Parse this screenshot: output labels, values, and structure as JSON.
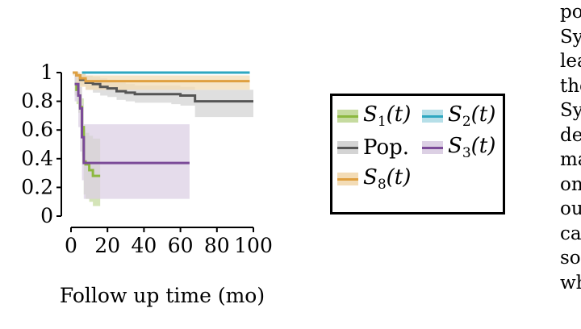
{
  "chart_data": {
    "type": "line",
    "xlabel": "Follow up time (mo)",
    "ylabel": "",
    "xlim": [
      0,
      100
    ],
    "ylim": [
      0,
      1
    ],
    "xticks": [
      "0",
      "20",
      "40",
      "60",
      "80",
      "100"
    ],
    "yticks": [
      "0",
      "0.2",
      "0.4",
      "0.6",
      "0.8",
      "1"
    ],
    "grid": false,
    "legend_position": "right-outside",
    "series": [
      {
        "name": "S1(t)",
        "legend_text": "S",
        "legend_sub": "1",
        "legend_suffix": "(t)",
        "color": "#8cb83f",
        "band_color": "#c6dba0",
        "x": [
          2,
          3,
          4,
          5,
          6,
          7,
          8,
          10,
          12,
          16
        ],
        "y": [
          0.92,
          0.88,
          0.84,
          0.76,
          0.62,
          0.38,
          0.36,
          0.32,
          0.28,
          0.28
        ],
        "lower": [
          0.84,
          0.78,
          0.72,
          0.62,
          0.42,
          0.15,
          0.12,
          0.1,
          0.07,
          0.07
        ],
        "upper": [
          0.98,
          0.96,
          0.94,
          0.9,
          0.82,
          0.6,
          0.58,
          0.56,
          0.54,
          0.54
        ]
      },
      {
        "name": "S2(t)",
        "legend_text": "S",
        "legend_sub": "2",
        "legend_suffix": "(t)",
        "color": "#2ea7c0",
        "band_color": "#b6dfe8",
        "x": [
          6,
          98
        ],
        "y": [
          1.0,
          1.0
        ],
        "lower": [
          1.0,
          1.0
        ],
        "upper": [
          1.0,
          1.0
        ]
      },
      {
        "name": "Pop.",
        "legend_text": "Pop.",
        "legend_sub": "",
        "legend_suffix": "",
        "color": "#555555",
        "band_color": "#d4d4d4",
        "x": [
          1,
          3,
          5,
          8,
          12,
          16,
          20,
          25,
          30,
          35,
          45,
          55,
          60,
          68,
          80,
          100
        ],
        "y": [
          1.0,
          0.98,
          0.95,
          0.93,
          0.92,
          0.9,
          0.89,
          0.87,
          0.86,
          0.85,
          0.85,
          0.85,
          0.84,
          0.8,
          0.8,
          0.8
        ],
        "lower": [
          0.99,
          0.95,
          0.91,
          0.88,
          0.86,
          0.84,
          0.83,
          0.81,
          0.8,
          0.79,
          0.79,
          0.78,
          0.77,
          0.69,
          0.69,
          0.69
        ],
        "upper": [
          1.0,
          1.0,
          0.99,
          0.98,
          0.97,
          0.96,
          0.95,
          0.93,
          0.92,
          0.91,
          0.91,
          0.91,
          0.9,
          0.88,
          0.88,
          0.88
        ]
      },
      {
        "name": "S3(t)",
        "legend_text": "S",
        "legend_sub": "3",
        "legend_suffix": "(t)",
        "color": "#7b4a98",
        "band_color": "#dcd0e4",
        "x": [
          2,
          4,
          5,
          6,
          7,
          65
        ],
        "y": [
          0.92,
          0.84,
          0.75,
          0.55,
          0.37,
          0.37
        ],
        "lower": [
          0.8,
          0.62,
          0.45,
          0.25,
          0.12,
          0.12
        ],
        "upper": [
          0.98,
          0.95,
          0.9,
          0.78,
          0.64,
          0.64
        ]
      },
      {
        "name": "S8(t)",
        "legend_text": "S",
        "legend_sub": "8",
        "legend_suffix": "(t)",
        "color": "#e0a040",
        "band_color": "#f3dcb6",
        "x": [
          1,
          3,
          5,
          8,
          98
        ],
        "y": [
          1.0,
          0.98,
          0.96,
          0.94,
          0.94
        ],
        "lower": [
          0.98,
          0.93,
          0.9,
          0.88,
          0.88
        ],
        "upper": [
          1.0,
          1.0,
          0.99,
          0.98,
          0.98
        ]
      }
    ]
  },
  "legend": {
    "s1": {
      "main": "S",
      "sub": "1",
      "suffix": "(t)"
    },
    "s2": {
      "main": "S",
      "sub": "2",
      "suffix": "(t)"
    },
    "pop": {
      "main": "Pop."
    },
    "s3": {
      "main": "S",
      "sub": "3",
      "suffix": "(t)"
    },
    "s8": {
      "main": "S",
      "sub": "8",
      "suffix": "(t)"
    }
  },
  "side_text": [
    "po",
    "Sy",
    "lea",
    "the",
    "Sy",
    "de",
    "ma",
    "on",
    "ou",
    "ca",
    "so",
    "wh"
  ]
}
